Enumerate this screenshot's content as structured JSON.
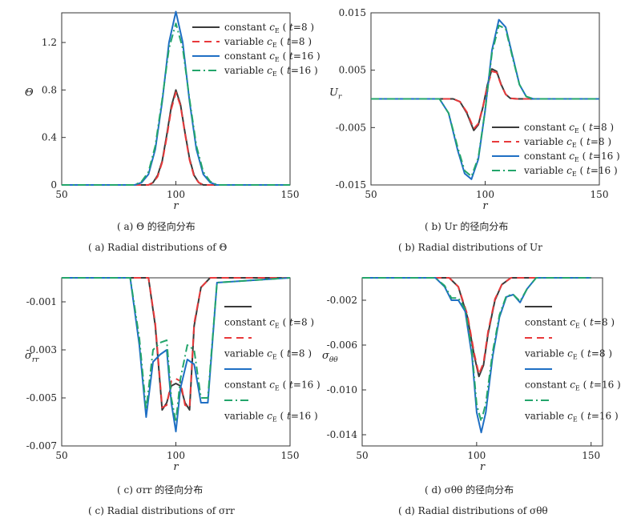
{
  "colors": {
    "constant_t8": "#3a3a3a",
    "variable_t8": "#e8393b",
    "constant_t16": "#1f6fc4",
    "variable_t16": "#23a56b"
  },
  "legend_labels": [
    "constant",
    "variable",
    "constant",
    "variable"
  ],
  "legend_ce": "c",
  "legend_ce_sub": "E",
  "legend_t": [
    "t=8",
    "t=8",
    "t=16",
    "t=16"
  ],
  "captions": {
    "a_cn": "( a)  Θ 的径向分布",
    "a_en": "( a)  Radial distributions of Θ",
    "b_cn": "( b)  Ur 的径向分布",
    "b_en": "( b)  Radial distributions of Ur",
    "c_cn": "( c)  σrr 的径向分布",
    "c_en": "( c)  Radial distributions of σrr",
    "d_cn": "( d)  σθθ 的径向分布",
    "d_en": "( d)  Radial distributions of σθθ"
  },
  "chart_data": [
    {
      "type": "line",
      "panel": "a",
      "xlabel": "r",
      "ylabel": "Θ",
      "xlim": [
        50,
        150
      ],
      "ylim": [
        0,
        1.45
      ],
      "xticks": [
        50,
        100,
        150
      ],
      "yticks": [
        0,
        0.4,
        0.8,
        1.2
      ],
      "ytick_labels": [
        "0",
        "0.4",
        "0.8",
        "1.2"
      ],
      "legend_position": "top-right",
      "series": [
        {
          "name": "constant c_E ( t=8 )",
          "style": "solid",
          "color": "#3a3a3a",
          "x": [
            50,
            88,
            90,
            92,
            94,
            96,
            98,
            100,
            102,
            104,
            106,
            108,
            110,
            112,
            150
          ],
          "y": [
            0,
            0,
            0.02,
            0.08,
            0.2,
            0.42,
            0.66,
            0.8,
            0.68,
            0.44,
            0.22,
            0.08,
            0.02,
            0,
            0
          ]
        },
        {
          "name": "variable c_E ( t=8 )",
          "style": "dashed",
          "color": "#e8393b",
          "x": [
            50,
            88,
            90,
            92,
            94,
            96,
            98,
            100,
            102,
            104,
            106,
            108,
            110,
            112,
            150
          ],
          "y": [
            0,
            0,
            0.02,
            0.07,
            0.19,
            0.4,
            0.64,
            0.78,
            0.67,
            0.43,
            0.21,
            0.07,
            0.02,
            0,
            0
          ]
        },
        {
          "name": "constant c_E ( t=16 )",
          "style": "solid",
          "color": "#1f6fc4",
          "x": [
            50,
            82,
            85,
            88,
            91,
            94,
            97,
            100,
            103,
            106,
            109,
            112,
            115,
            118,
            150
          ],
          "y": [
            0,
            0,
            0.02,
            0.09,
            0.3,
            0.7,
            1.2,
            1.46,
            1.2,
            0.7,
            0.3,
            0.09,
            0.02,
            0,
            0
          ]
        },
        {
          "name": "variable c_E ( t=16 )",
          "style": "dashdot",
          "color": "#23a56b",
          "x": [
            50,
            82,
            85,
            88,
            91,
            94,
            97,
            100,
            103,
            106,
            109,
            112,
            115,
            118,
            150
          ],
          "y": [
            0,
            0,
            0.03,
            0.11,
            0.33,
            0.72,
            1.15,
            1.36,
            1.15,
            0.72,
            0.33,
            0.11,
            0.03,
            0,
            0
          ]
        }
      ]
    },
    {
      "type": "line",
      "panel": "b",
      "xlabel": "r",
      "ylabel": "Ur",
      "xlim": [
        50,
        150
      ],
      "ylim": [
        -0.015,
        0.015
      ],
      "xticks": [
        50,
        100,
        150
      ],
      "yticks": [
        -0.015,
        -0.005,
        0.005,
        0.015
      ],
      "ytick_labels": [
        "-0.015",
        "-0.005",
        "0.005",
        "0.015"
      ],
      "legend_position": "lower-right",
      "series": [
        {
          "name": "constant c_E ( t=8 )",
          "style": "solid",
          "color": "#3a3a3a",
          "x": [
            50,
            86,
            89,
            92,
            95,
            97,
            99,
            101,
            103,
            105,
            107,
            109,
            111,
            114,
            150
          ],
          "y": [
            0,
            0,
            -0.0005,
            -0.0025,
            -0.0055,
            -0.0045,
            -0.0015,
            0.0025,
            0.0052,
            0.0048,
            0.0025,
            0.0008,
            0.0001,
            0,
            0
          ]
        },
        {
          "name": "variable c_E ( t=8 )",
          "style": "dashed",
          "color": "#e8393b",
          "x": [
            50,
            86,
            89,
            92,
            95,
            97,
            99,
            101,
            103,
            105,
            107,
            109,
            111,
            114,
            150
          ],
          "y": [
            0,
            0,
            -0.0005,
            -0.0023,
            -0.0052,
            -0.0043,
            -0.0014,
            0.0023,
            0.0048,
            0.0046,
            0.0024,
            0.0008,
            0.0001,
            0,
            0
          ]
        },
        {
          "name": "constant c_E ( t=16 )",
          "style": "solid",
          "color": "#1f6fc4",
          "x": [
            50,
            80,
            84,
            88,
            91,
            94,
            97,
            100,
            103,
            106,
            109,
            112,
            115,
            118,
            121,
            150
          ],
          "y": [
            0,
            0,
            -0.0025,
            -0.009,
            -0.013,
            -0.014,
            -0.0105,
            -0.002,
            0.0085,
            0.0138,
            0.0125,
            0.0075,
            0.0025,
            0.0004,
            0,
            0
          ]
        },
        {
          "name": "variable c_E ( t=16 )",
          "style": "dashdot",
          "color": "#23a56b",
          "x": [
            50,
            80,
            84,
            88,
            91,
            94,
            97,
            100,
            103,
            106,
            109,
            112,
            115,
            118,
            121,
            150
          ],
          "y": [
            0,
            0,
            -0.0025,
            -0.0085,
            -0.0125,
            -0.0135,
            -0.0102,
            -0.002,
            0.008,
            0.0128,
            0.0122,
            0.0072,
            0.0025,
            0.0004,
            0,
            0
          ]
        }
      ]
    },
    {
      "type": "line",
      "panel": "c",
      "xlabel": "r",
      "ylabel": "σrr",
      "xlim": [
        50,
        150
      ],
      "ylim": [
        -0.007,
        0.0
      ],
      "xticks": [
        50,
        100,
        150
      ],
      "yticks": [
        -0.007,
        -0.005,
        -0.003,
        -0.001
      ],
      "ytick_labels": [
        "-0.007",
        "-0.005",
        "-0.003",
        "-0.001"
      ],
      "legend_position": "right",
      "series": [
        {
          "name": "constant c_E ( t=8 )",
          "style": "solid",
          "color": "#3a3a3a",
          "x": [
            50,
            88,
            91,
            94,
            96,
            98,
            100,
            102,
            104,
            106,
            108,
            111,
            115,
            150
          ],
          "y": [
            0,
            0,
            -0.002,
            -0.0055,
            -0.0052,
            -0.0045,
            -0.0044,
            -0.0045,
            -0.0052,
            -0.0055,
            -0.002,
            -0.0004,
            0,
            0
          ]
        },
        {
          "name": "variable c_E ( t=8 )",
          "style": "dashed",
          "color": "#e8393b",
          "x": [
            50,
            88,
            91,
            94,
            96,
            98,
            100,
            102,
            104,
            106,
            108,
            111,
            115,
            150
          ],
          "y": [
            0,
            0,
            -0.0019,
            -0.0054,
            -0.0053,
            -0.0043,
            -0.0042,
            -0.0043,
            -0.0053,
            -0.0054,
            -0.0019,
            -0.0004,
            0,
            0
          ]
        },
        {
          "name": "constant c_E ( t=16 )",
          "style": "solid",
          "color": "#1f6fc4",
          "x": [
            50,
            80,
            84,
            87,
            90,
            93,
            96,
            98,
            100,
            102,
            105,
            108,
            111,
            114,
            118,
            150
          ],
          "y": [
            0,
            0,
            -0.0028,
            -0.0058,
            -0.0035,
            -0.0032,
            -0.003,
            -0.0052,
            -0.0064,
            -0.0046,
            -0.0034,
            -0.0036,
            -0.0052,
            -0.0052,
            -0.0002,
            0
          ]
        },
        {
          "name": "variable c_E ( t=16 )",
          "style": "dashdot",
          "color": "#23a56b",
          "x": [
            50,
            80,
            84,
            87,
            90,
            93,
            96,
            98,
            100,
            102,
            105,
            108,
            111,
            114,
            118,
            150
          ],
          "y": [
            0,
            0,
            -0.0025,
            -0.0055,
            -0.003,
            -0.0027,
            -0.0026,
            -0.005,
            -0.006,
            -0.0042,
            -0.0028,
            -0.003,
            -0.005,
            -0.005,
            -0.0002,
            0
          ]
        }
      ]
    },
    {
      "type": "line",
      "panel": "d",
      "xlabel": "r",
      "ylabel": "σθθ",
      "xlim": [
        50,
        155
      ],
      "ylim": [
        -0.015,
        0.0
      ],
      "xticks": [
        50,
        100,
        150
      ],
      "yticks": [
        -0.014,
        -0.01,
        -0.006,
        -0.002
      ],
      "ytick_labels": [
        "-0.014",
        "-0.010",
        "-0.006",
        "-0.002"
      ],
      "legend_position": "right",
      "series": [
        {
          "name": "constant c_E ( t=8 )",
          "style": "solid",
          "color": "#3a3a3a",
          "x": [
            50,
            88,
            92,
            96,
            99,
            101,
            103,
            105,
            108,
            111,
            115,
            150
          ],
          "y": [
            0,
            0,
            -0.0008,
            -0.0035,
            -0.007,
            -0.0088,
            -0.0078,
            -0.005,
            -0.002,
            -0.0006,
            0,
            0
          ]
        },
        {
          "name": "variable c_E ( t=8 )",
          "style": "dashed",
          "color": "#e8393b",
          "x": [
            50,
            88,
            92,
            96,
            99,
            101,
            103,
            105,
            108,
            111,
            115,
            150
          ],
          "y": [
            0,
            0,
            -0.0008,
            -0.0033,
            -0.0068,
            -0.0086,
            -0.0076,
            -0.0048,
            -0.0019,
            -0.0006,
            0,
            0
          ]
        },
        {
          "name": "constant c_E ( t=16 )",
          "style": "solid",
          "color": "#1f6fc4",
          "x": [
            50,
            82,
            86,
            89,
            92,
            95,
            98,
            100,
            102,
            104,
            107,
            110,
            113,
            116,
            119,
            122,
            126,
            150
          ],
          "y": [
            0,
            0,
            -0.0008,
            -0.002,
            -0.002,
            -0.003,
            -0.007,
            -0.012,
            -0.0138,
            -0.012,
            -0.007,
            -0.0035,
            -0.0017,
            -0.0015,
            -0.0022,
            -0.001,
            0,
            0
          ]
        },
        {
          "name": "variable c_E ( t=16 )",
          "style": "dashdot",
          "color": "#23a56b",
          "x": [
            50,
            82,
            86,
            89,
            92,
            95,
            98,
            100,
            102,
            104,
            107,
            110,
            113,
            116,
            119,
            122,
            126,
            150
          ],
          "y": [
            0,
            0,
            -0.0007,
            -0.0018,
            -0.0018,
            -0.0028,
            -0.0066,
            -0.0113,
            -0.0128,
            -0.0112,
            -0.0066,
            -0.0033,
            -0.0016,
            -0.0015,
            -0.0021,
            -0.001,
            0,
            0
          ]
        }
      ]
    }
  ]
}
